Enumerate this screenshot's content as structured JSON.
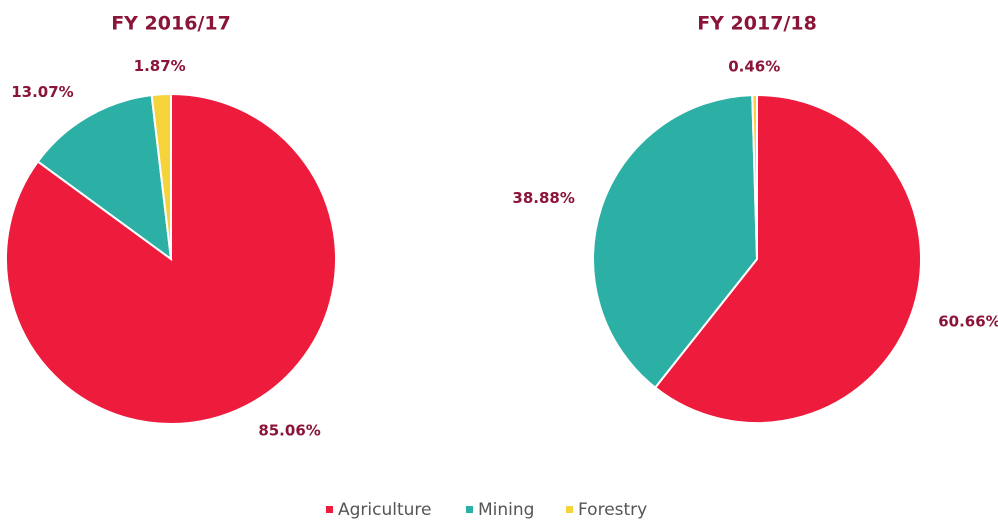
{
  "chart_data": [
    {
      "type": "pie",
      "title": "FY 2016/17",
      "categories": [
        "Agriculture",
        "Mining",
        "Forestry"
      ],
      "values": [
        85.06,
        13.07,
        1.87
      ],
      "value_labels": [
        "85.06%",
        "13.07%",
        "1.87%"
      ],
      "colors": [
        "#ed1c3c",
        "#2cb0a5",
        "#f5d33a"
      ]
    },
    {
      "type": "pie",
      "title": "FY 2017/18",
      "categories": [
        "Agriculture",
        "Mining",
        "Forestry"
      ],
      "values": [
        60.66,
        38.88,
        0.46
      ],
      "value_labels": [
        "60.66%",
        "38.88%",
        "0.46%"
      ],
      "colors": [
        "#ed1c3c",
        "#2cb0a5",
        "#f5d33a"
      ]
    }
  ]
}
